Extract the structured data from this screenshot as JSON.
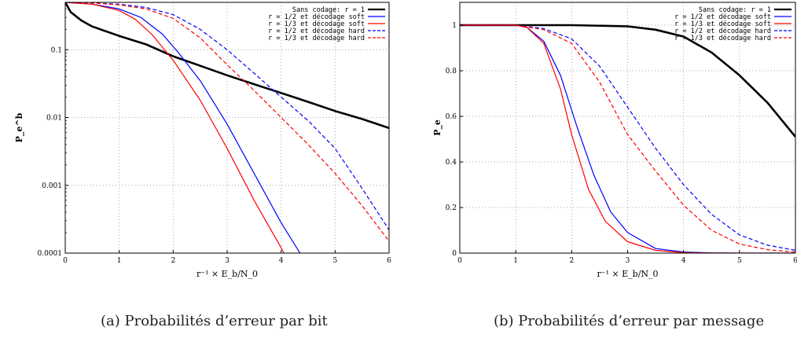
{
  "chart_data": [
    {
      "type": "line",
      "id": "a",
      "caption": "(a) Probabilités d’erreur par bit",
      "xlabel": "r⁻¹ × E_b/N_0",
      "ylabel": "P_e^b",
      "xlim": [
        0,
        6
      ],
      "ylim": [
        0.0001,
        0.5
      ],
      "yscale": "log",
      "grid": true,
      "legend_position": "top-right",
      "xticks": [
        0,
        1,
        2,
        3,
        4,
        5,
        6
      ],
      "yticks": [
        {
          "value": 0.0001,
          "label": "0.0001"
        },
        {
          "value": 0.001,
          "label": "0.001"
        },
        {
          "value": 0.01,
          "label": "0.01"
        },
        {
          "value": 0.1,
          "label": "0.1"
        }
      ],
      "series": [
        {
          "name": "Sans codage: r = 1",
          "color": "#000000",
          "dash": false,
          "width": 2.6,
          "x": [
            0,
            0.1,
            0.3,
            0.5,
            1,
            1.5,
            2,
            2.5,
            3,
            3.5,
            4,
            4.5,
            5,
            5.5,
            6
          ],
          "y": [
            0.5,
            0.36,
            0.27,
            0.22,
            0.16,
            0.12,
            0.08,
            0.058,
            0.042,
            0.031,
            0.023,
            0.017,
            0.0125,
            0.0095,
            0.007
          ]
        },
        {
          "name": "r = 1/2 et décodage soft",
          "color": "#0000ff",
          "dash": false,
          "width": 1.2,
          "x": [
            0,
            0.5,
            1,
            1.4,
            1.8,
            2.1,
            2.5,
            3,
            3.5,
            4,
            4.35
          ],
          "y": [
            0.5,
            0.47,
            0.4,
            0.3,
            0.17,
            0.09,
            0.035,
            0.008,
            0.0015,
            0.00028,
            0.0001
          ]
        },
        {
          "name": "r = 1/3 et décodage soft",
          "color": "#ff0000",
          "dash": false,
          "width": 1.2,
          "x": [
            0,
            0.5,
            1,
            1.3,
            1.6,
            2,
            2.5,
            3,
            3.5,
            4,
            4.05
          ],
          "y": [
            0.5,
            0.47,
            0.38,
            0.28,
            0.17,
            0.07,
            0.018,
            0.0035,
            0.0006,
            0.00012,
            0.0001
          ]
        },
        {
          "name": "r = 1/2 et décodage hard",
          "color": "#0000ff",
          "dash": true,
          "width": 1.2,
          "x": [
            0,
            0.5,
            1,
            1.5,
            2,
            2.5,
            3,
            3.5,
            4,
            4.5,
            5,
            5.5,
            6
          ],
          "y": [
            0.5,
            0.49,
            0.47,
            0.42,
            0.33,
            0.2,
            0.1,
            0.045,
            0.02,
            0.009,
            0.0035,
            0.0009,
            0.00022
          ]
        },
        {
          "name": "r = 1/3 et décodage hard",
          "color": "#ff0000",
          "dash": true,
          "width": 1.2,
          "x": [
            0,
            0.5,
            1,
            1.5,
            2,
            2.5,
            3,
            3.5,
            4,
            4.5,
            5,
            5.5,
            6
          ],
          "y": [
            0.5,
            0.49,
            0.46,
            0.4,
            0.29,
            0.15,
            0.06,
            0.025,
            0.01,
            0.004,
            0.0015,
            0.0005,
            0.00015
          ]
        }
      ]
    },
    {
      "type": "line",
      "id": "b",
      "caption": "(b) Probabilités d’erreur par message",
      "xlabel": "r⁻¹ × E_b/N_0",
      "ylabel": "P_e",
      "xlim": [
        0,
        6
      ],
      "ylim": [
        0,
        1.1
      ],
      "yscale": "linear",
      "grid": true,
      "legend_position": "top-right",
      "xticks": [
        0,
        1,
        2,
        3,
        4,
        5,
        6
      ],
      "yticks": [
        {
          "value": 0,
          "label": "0"
        },
        {
          "value": 0.2,
          "label": "0.2"
        },
        {
          "value": 0.4,
          "label": "0.4"
        },
        {
          "value": 0.6,
          "label": "0.6"
        },
        {
          "value": 0.8,
          "label": "0.8"
        },
        {
          "value": 1,
          "label": "1"
        }
      ],
      "series": [
        {
          "name": "Sans codage: r = 1",
          "color": "#000000",
          "dash": false,
          "width": 2.6,
          "x": [
            0,
            1,
            2,
            3,
            3.5,
            4,
            4.5,
            5,
            5.5,
            6
          ],
          "y": [
            1,
            1,
            1,
            0.995,
            0.98,
            0.95,
            0.88,
            0.78,
            0.66,
            0.51
          ]
        },
        {
          "name": "r = 1/2 et décodage soft",
          "color": "#0000ff",
          "dash": false,
          "width": 1.2,
          "x": [
            0,
            1,
            1.2,
            1.5,
            1.8,
            2.1,
            2.4,
            2.7,
            3,
            3.5,
            4,
            4.5,
            5,
            6
          ],
          "y": [
            1,
            1,
            0.99,
            0.93,
            0.78,
            0.55,
            0.34,
            0.18,
            0.09,
            0.02,
            0.005,
            0.001,
            0,
            0
          ]
        },
        {
          "name": "r = 1/3 et décodage soft",
          "color": "#ff0000",
          "dash": false,
          "width": 1.2,
          "x": [
            0,
            1,
            1.2,
            1.5,
            1.8,
            2,
            2.3,
            2.6,
            3,
            3.5,
            4,
            4.5,
            5,
            6
          ],
          "y": [
            1,
            1,
            0.99,
            0.92,
            0.72,
            0.52,
            0.28,
            0.14,
            0.05,
            0.012,
            0.002,
            0.0005,
            0,
            0
          ]
        },
        {
          "name": "r = 1/2 et décodage hard",
          "color": "#0000ff",
          "dash": true,
          "width": 1.2,
          "x": [
            0,
            1,
            1.5,
            2,
            2.5,
            3,
            3.5,
            4,
            4.5,
            5,
            5.5,
            6
          ],
          "y": [
            1,
            1,
            0.985,
            0.94,
            0.82,
            0.64,
            0.46,
            0.3,
            0.17,
            0.08,
            0.035,
            0.012
          ]
        },
        {
          "name": "r = 1/3 et décodage hard",
          "color": "#ff0000",
          "dash": true,
          "width": 1.2,
          "x": [
            0,
            1,
            1.5,
            2,
            2.5,
            3,
            3.5,
            4,
            4.5,
            5,
            5.5,
            6
          ],
          "y": [
            1,
            1,
            0.98,
            0.92,
            0.75,
            0.52,
            0.36,
            0.21,
            0.1,
            0.04,
            0.015,
            0.004
          ]
        }
      ]
    }
  ]
}
